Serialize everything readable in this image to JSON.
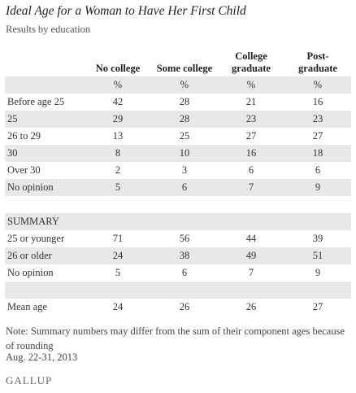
{
  "header": {
    "title": "Ideal Age for a Woman to Have Her First Child",
    "subtitle": "Results by education"
  },
  "table": {
    "columns": [
      "No college",
      "Some college",
      "College graduate",
      "Post-graduate"
    ],
    "units": [
      "%",
      "%",
      "%",
      "%"
    ],
    "sections": [
      {
        "rows": [
          {
            "label": "Before age 25",
            "cells": [
              "42",
              "28",
              "21",
              "16"
            ]
          },
          {
            "label": "25",
            "cells": [
              "29",
              "28",
              "23",
              "23"
            ]
          },
          {
            "label": "26 to 29",
            "cells": [
              "13",
              "25",
              "27",
              "27"
            ]
          },
          {
            "label": "30",
            "cells": [
              "8",
              "10",
              "16",
              "18"
            ]
          },
          {
            "label": "Over 30",
            "cells": [
              "2",
              "3",
              "6",
              "6"
            ]
          },
          {
            "label": "No opinion",
            "cells": [
              "5",
              "6",
              "7",
              "9"
            ]
          }
        ]
      },
      {
        "title": "SUMMARY",
        "rows": [
          {
            "label": "25 or younger",
            "cells": [
              "71",
              "56",
              "44",
              "39"
            ]
          },
          {
            "label": "26 or older",
            "cells": [
              "24",
              "38",
              "49",
              "51"
            ]
          },
          {
            "label": "No opinion",
            "cells": [
              "5",
              "6",
              "7",
              "9"
            ]
          }
        ]
      },
      {
        "rows": [
          {
            "label": "Mean age",
            "cells": [
              "24",
              "26",
              "26",
              "27"
            ]
          }
        ]
      }
    ]
  },
  "footer": {
    "note": "Note: Summary numbers may differ from the sum of their component ages because of rounding",
    "date": "Aug. 22-31, 2013",
    "logo": "GALLUP"
  }
}
